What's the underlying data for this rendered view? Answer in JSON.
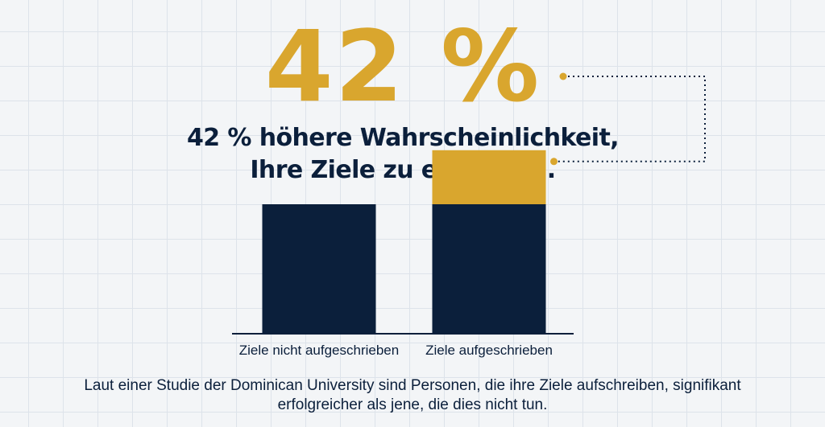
{
  "headline": {
    "big_number": "42 %",
    "line1": "42 % höhere Wahrscheinlichkeit,",
    "line2": "Ihre Ziele zu erreichen."
  },
  "caption": {
    "line1": "Laut einer Studie der Dominican University sind Personen, die ihre Ziele aufschreiben, signifikant",
    "line2": "erfolgreicher als jene, die dies nicht tun."
  },
  "colors": {
    "navy": "#0b1f3b",
    "gold": "#d9a62e",
    "grid": "#dde3ea",
    "background": "#f3f5f7"
  },
  "chart_data": {
    "type": "bar",
    "categories": [
      "Ziele nicht aufgeschrieben",
      "Ziele aufgeschrieben"
    ],
    "series": [
      {
        "values": [
          100,
          100
        ]
      },
      {
        "values": [
          0,
          42
        ]
      }
    ],
    "stacked": true,
    "ylim": [
      0,
      150
    ],
    "annotation": "42 %",
    "grid": true
  }
}
